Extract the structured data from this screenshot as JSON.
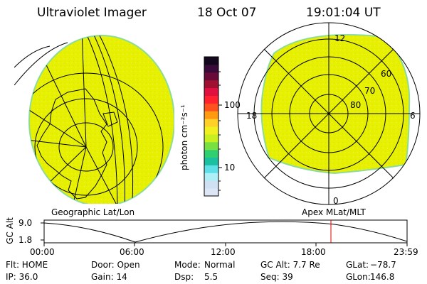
{
  "header": {
    "title": "Ultraviolet Imager",
    "date": "18 Oct 07",
    "time": "19:01:04 UT"
  },
  "left_panel": {
    "caption": "Geographic Lat/Lon"
  },
  "right_panel": {
    "caption": "Apex MLat/MLT",
    "mlt_labels": [
      "12",
      "18",
      "6",
      "0"
    ],
    "lat_labels": [
      "60",
      "70",
      "80"
    ]
  },
  "colorbar": {
    "unit_label": "photon cm⁻²s⁻¹",
    "ticks": [
      "100",
      "10"
    ],
    "colors": [
      "#dde6f5",
      "#cfe0f2",
      "#aeeef5",
      "#5fe0e8",
      "#1bc0a0",
      "#30d070",
      "#78e040",
      "#c8f020",
      "#f0f020",
      "#ffd028",
      "#ff9a10",
      "#ff5020",
      "#ff2030",
      "#e01040",
      "#a01030",
      "#6a0a38",
      "#3a0a3a",
      "#14081e"
    ]
  },
  "timeline": {
    "axis_label": "GC Alt",
    "y_ticks": [
      "9.0",
      "1.8"
    ],
    "x_ticks": [
      "00:00",
      "06:00",
      "12:00",
      "18:00",
      "23:59"
    ],
    "marker_color": "#e00000"
  },
  "status": {
    "flt": "Flt: HOME",
    "door": "Door: Open",
    "mode_label": "Mode:",
    "mode_value": "Normal",
    "gc_alt": "GC Alt: 7.7 Re",
    "glat_label": "GLat:",
    "glat_value": "−78.7",
    "ip": "IP: 36.0",
    "gain": "Gain: 14",
    "dsp_label": "Dsp:",
    "dsp_value": "5.5",
    "seq": "Seq: 39",
    "glon_label": "GLon:",
    "glon_value": "146.8"
  },
  "colors": {
    "aurora_fill": "#e6f000",
    "edge": "#78d898",
    "marker": "#e00000"
  }
}
